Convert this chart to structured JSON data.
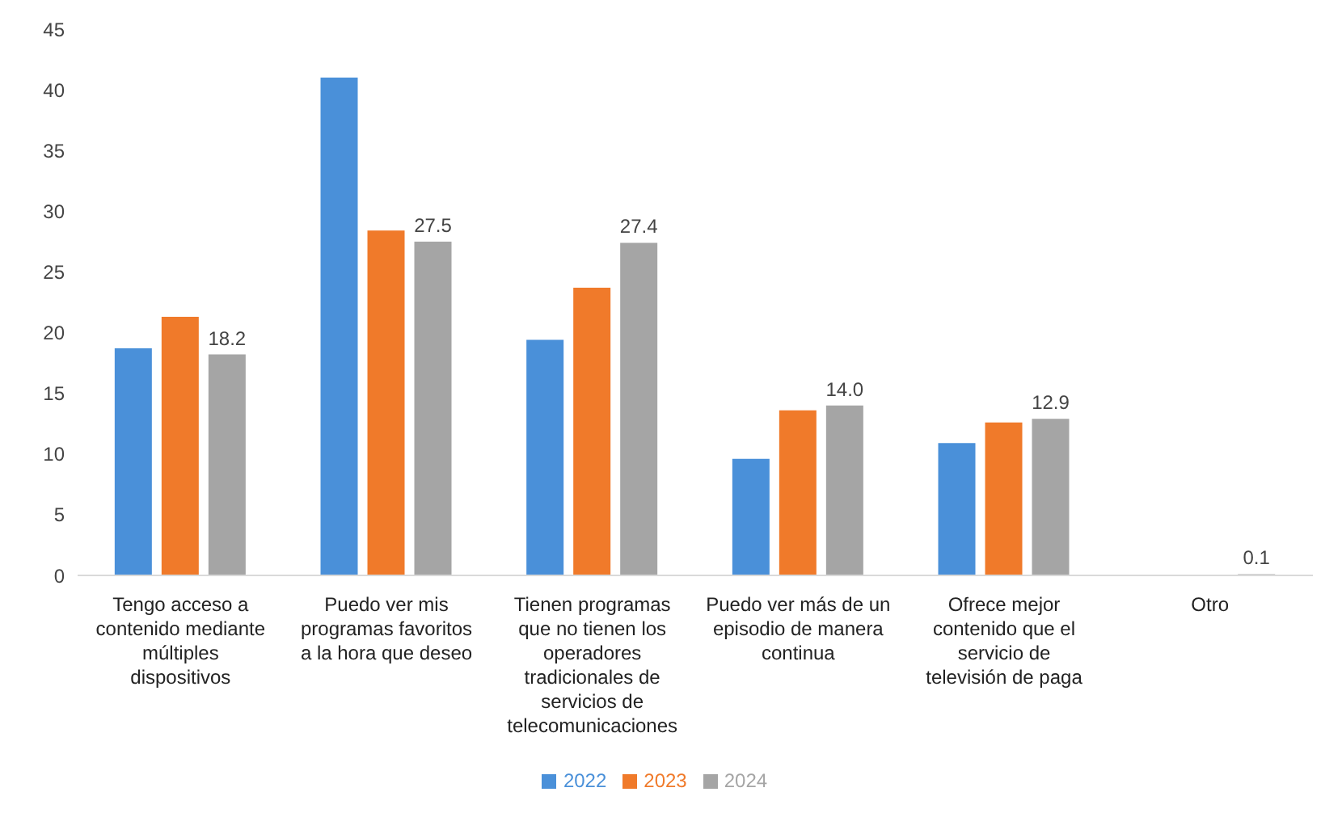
{
  "chart_data": {
    "type": "bar",
    "categories": [
      "Tengo acceso a contenido mediante múltiples dispositivos",
      "Puedo ver mis programas favoritos a la hora que deseo",
      "Tienen programas que no tienen los operadores tradicionales de servicios de telecomunicaciones",
      "Puedo ver más de un episodio de manera continua",
      "Ofrece mejor contenido que el servicio de televisión de paga",
      "Otro"
    ],
    "series": [
      {
        "name": "2022",
        "color": "#4a90d9",
        "values": [
          18.7,
          41.0,
          19.4,
          9.6,
          10.9,
          null
        ]
      },
      {
        "name": "2023",
        "color": "#f07a2a",
        "values": [
          21.3,
          28.4,
          23.7,
          13.6,
          12.6,
          null
        ]
      },
      {
        "name": "2024",
        "color": "#a5a5a5",
        "values": [
          18.2,
          27.5,
          27.4,
          14.0,
          12.9,
          0.1
        ],
        "value_labels": [
          "18.2",
          "27.5",
          "27.4",
          "14.0",
          "12.9",
          "0.1"
        ]
      }
    ],
    "ylim": [
      0,
      45
    ],
    "yticks": [
      0,
      5,
      10,
      15,
      20,
      25,
      30,
      35,
      40,
      45
    ],
    "grid": false,
    "legend": "bottom"
  }
}
